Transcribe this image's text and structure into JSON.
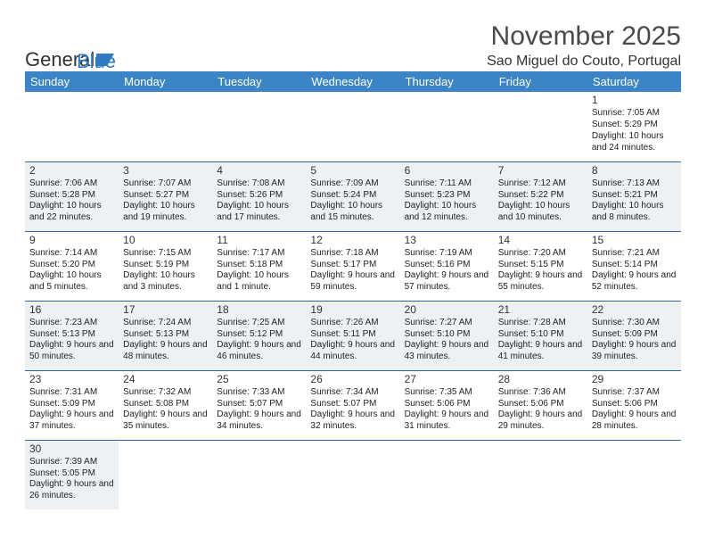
{
  "logo": {
    "text1": "General",
    "text2": "Blue"
  },
  "title": "November 2025",
  "location": "Sao Miguel do Couto, Portugal",
  "columns": [
    "Sunday",
    "Monday",
    "Tuesday",
    "Wednesday",
    "Thursday",
    "Friday",
    "Saturday"
  ],
  "header_bg": "#3b85c6",
  "header_fg": "#ffffff",
  "cell_border": "#2f6aa8",
  "shade_bg": "#eef1f3",
  "weeks": [
    [
      {
        "n": "",
        "sr": "",
        "ss": "",
        "dl": ""
      },
      {
        "n": "",
        "sr": "",
        "ss": "",
        "dl": ""
      },
      {
        "n": "",
        "sr": "",
        "ss": "",
        "dl": ""
      },
      {
        "n": "",
        "sr": "",
        "ss": "",
        "dl": ""
      },
      {
        "n": "",
        "sr": "",
        "ss": "",
        "dl": ""
      },
      {
        "n": "",
        "sr": "",
        "ss": "",
        "dl": ""
      },
      {
        "n": "1",
        "sr": "Sunrise: 7:05 AM",
        "ss": "Sunset: 5:29 PM",
        "dl": "Daylight: 10 hours and 24 minutes."
      }
    ],
    [
      {
        "n": "2",
        "sr": "Sunrise: 7:06 AM",
        "ss": "Sunset: 5:28 PM",
        "dl": "Daylight: 10 hours and 22 minutes."
      },
      {
        "n": "3",
        "sr": "Sunrise: 7:07 AM",
        "ss": "Sunset: 5:27 PM",
        "dl": "Daylight: 10 hours and 19 minutes."
      },
      {
        "n": "4",
        "sr": "Sunrise: 7:08 AM",
        "ss": "Sunset: 5:26 PM",
        "dl": "Daylight: 10 hours and 17 minutes."
      },
      {
        "n": "5",
        "sr": "Sunrise: 7:09 AM",
        "ss": "Sunset: 5:24 PM",
        "dl": "Daylight: 10 hours and 15 minutes."
      },
      {
        "n": "6",
        "sr": "Sunrise: 7:11 AM",
        "ss": "Sunset: 5:23 PM",
        "dl": "Daylight: 10 hours and 12 minutes."
      },
      {
        "n": "7",
        "sr": "Sunrise: 7:12 AM",
        "ss": "Sunset: 5:22 PM",
        "dl": "Daylight: 10 hours and 10 minutes."
      },
      {
        "n": "8",
        "sr": "Sunrise: 7:13 AM",
        "ss": "Sunset: 5:21 PM",
        "dl": "Daylight: 10 hours and 8 minutes."
      }
    ],
    [
      {
        "n": "9",
        "sr": "Sunrise: 7:14 AM",
        "ss": "Sunset: 5:20 PM",
        "dl": "Daylight: 10 hours and 5 minutes."
      },
      {
        "n": "10",
        "sr": "Sunrise: 7:15 AM",
        "ss": "Sunset: 5:19 PM",
        "dl": "Daylight: 10 hours and 3 minutes."
      },
      {
        "n": "11",
        "sr": "Sunrise: 7:17 AM",
        "ss": "Sunset: 5:18 PM",
        "dl": "Daylight: 10 hours and 1 minute."
      },
      {
        "n": "12",
        "sr": "Sunrise: 7:18 AM",
        "ss": "Sunset: 5:17 PM",
        "dl": "Daylight: 9 hours and 59 minutes."
      },
      {
        "n": "13",
        "sr": "Sunrise: 7:19 AM",
        "ss": "Sunset: 5:16 PM",
        "dl": "Daylight: 9 hours and 57 minutes."
      },
      {
        "n": "14",
        "sr": "Sunrise: 7:20 AM",
        "ss": "Sunset: 5:15 PM",
        "dl": "Daylight: 9 hours and 55 minutes."
      },
      {
        "n": "15",
        "sr": "Sunrise: 7:21 AM",
        "ss": "Sunset: 5:14 PM",
        "dl": "Daylight: 9 hours and 52 minutes."
      }
    ],
    [
      {
        "n": "16",
        "sr": "Sunrise: 7:23 AM",
        "ss": "Sunset: 5:13 PM",
        "dl": "Daylight: 9 hours and 50 minutes."
      },
      {
        "n": "17",
        "sr": "Sunrise: 7:24 AM",
        "ss": "Sunset: 5:13 PM",
        "dl": "Daylight: 9 hours and 48 minutes."
      },
      {
        "n": "18",
        "sr": "Sunrise: 7:25 AM",
        "ss": "Sunset: 5:12 PM",
        "dl": "Daylight: 9 hours and 46 minutes."
      },
      {
        "n": "19",
        "sr": "Sunrise: 7:26 AM",
        "ss": "Sunset: 5:11 PM",
        "dl": "Daylight: 9 hours and 44 minutes."
      },
      {
        "n": "20",
        "sr": "Sunrise: 7:27 AM",
        "ss": "Sunset: 5:10 PM",
        "dl": "Daylight: 9 hours and 43 minutes."
      },
      {
        "n": "21",
        "sr": "Sunrise: 7:28 AM",
        "ss": "Sunset: 5:10 PM",
        "dl": "Daylight: 9 hours and 41 minutes."
      },
      {
        "n": "22",
        "sr": "Sunrise: 7:30 AM",
        "ss": "Sunset: 5:09 PM",
        "dl": "Daylight: 9 hours and 39 minutes."
      }
    ],
    [
      {
        "n": "23",
        "sr": "Sunrise: 7:31 AM",
        "ss": "Sunset: 5:09 PM",
        "dl": "Daylight: 9 hours and 37 minutes."
      },
      {
        "n": "24",
        "sr": "Sunrise: 7:32 AM",
        "ss": "Sunset: 5:08 PM",
        "dl": "Daylight: 9 hours and 35 minutes."
      },
      {
        "n": "25",
        "sr": "Sunrise: 7:33 AM",
        "ss": "Sunset: 5:07 PM",
        "dl": "Daylight: 9 hours and 34 minutes."
      },
      {
        "n": "26",
        "sr": "Sunrise: 7:34 AM",
        "ss": "Sunset: 5:07 PM",
        "dl": "Daylight: 9 hours and 32 minutes."
      },
      {
        "n": "27",
        "sr": "Sunrise: 7:35 AM",
        "ss": "Sunset: 5:06 PM",
        "dl": "Daylight: 9 hours and 31 minutes."
      },
      {
        "n": "28",
        "sr": "Sunrise: 7:36 AM",
        "ss": "Sunset: 5:06 PM",
        "dl": "Daylight: 9 hours and 29 minutes."
      },
      {
        "n": "29",
        "sr": "Sunrise: 7:37 AM",
        "ss": "Sunset: 5:06 PM",
        "dl": "Daylight: 9 hours and 28 minutes."
      }
    ],
    [
      {
        "n": "30",
        "sr": "Sunrise: 7:39 AM",
        "ss": "Sunset: 5:05 PM",
        "dl": "Daylight: 9 hours and 26 minutes."
      },
      {
        "n": "",
        "sr": "",
        "ss": "",
        "dl": ""
      },
      {
        "n": "",
        "sr": "",
        "ss": "",
        "dl": ""
      },
      {
        "n": "",
        "sr": "",
        "ss": "",
        "dl": ""
      },
      {
        "n": "",
        "sr": "",
        "ss": "",
        "dl": ""
      },
      {
        "n": "",
        "sr": "",
        "ss": "",
        "dl": ""
      },
      {
        "n": "",
        "sr": "",
        "ss": "",
        "dl": ""
      }
    ]
  ]
}
